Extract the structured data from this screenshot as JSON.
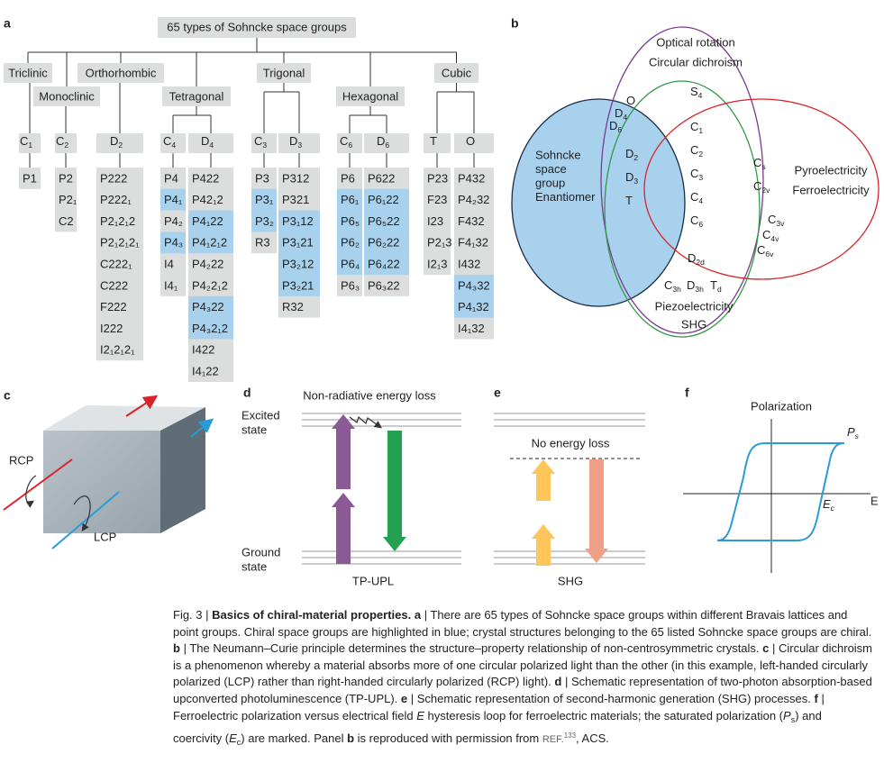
{
  "panel_a": {
    "letter": "a",
    "root": "65 types of Sohncke space groups",
    "systems": [
      {
        "name": "Triclinic",
        "point_groups": [
          {
            "symbol": {
              "base": "C",
              "sub": "1"
            },
            "space_groups": [
              "P1"
            ]
          }
        ]
      },
      {
        "name": "Monoclinic",
        "point_groups": [
          {
            "symbol": {
              "base": "C",
              "sub": "2"
            },
            "space_groups": [
              "P2",
              "P2₁",
              "C2"
            ]
          }
        ]
      },
      {
        "name": "Orthorhombic",
        "point_groups": [
          {
            "symbol": {
              "base": "D",
              "sub": "2"
            },
            "space_groups": [
              "P222",
              "P222₁",
              "P2₁2₁2",
              "P2₁2₁2₁",
              "C222₁",
              "C222",
              "F222",
              "I222",
              "I2₁2₁2₁"
            ]
          }
        ]
      },
      {
        "name": "Tetragonal",
        "point_groups": [
          {
            "symbol": {
              "base": "C",
              "sub": "4"
            },
            "space_groups": [
              "P4",
              "P4₁",
              "P4₂",
              "P4₃",
              "I4",
              "I4₁"
            ],
            "chiral": [
              1,
              3
            ]
          },
          {
            "symbol": {
              "base": "D",
              "sub": "4"
            },
            "space_groups": [
              "P422",
              "P42₁2",
              "P4₁22",
              "P4₁2₁2",
              "P4₂22",
              "P4₂2₁2",
              "P4₃22",
              "P4₃2₁2",
              "I422",
              "I4₁22"
            ],
            "chiral": [
              2,
              3,
              6,
              7
            ]
          }
        ]
      },
      {
        "name": "Trigonal",
        "point_groups": [
          {
            "symbol": {
              "base": "C",
              "sub": "3"
            },
            "space_groups": [
              "P3",
              "P3₁",
              "P3₂",
              "R3"
            ],
            "chiral": [
              1,
              2
            ]
          },
          {
            "symbol": {
              "base": "D",
              "sub": "3"
            },
            "space_groups": [
              "P312",
              "P321",
              "P3₁12",
              "P3₁21",
              "P3₂12",
              "P3₂21",
              "R32"
            ],
            "chiral": [
              2,
              3,
              4,
              5
            ]
          }
        ]
      },
      {
        "name": "Hexagonal",
        "point_groups": [
          {
            "symbol": {
              "base": "C",
              "sub": "6"
            },
            "space_groups": [
              "P6",
              "P6₁",
              "P6₅",
              "P6₂",
              "P6₄",
              "P6₃"
            ],
            "chiral": [
              1,
              2,
              3,
              4
            ]
          },
          {
            "symbol": {
              "base": "D",
              "sub": "6"
            },
            "space_groups": [
              "P622",
              "P6₁22",
              "P6₅22",
              "P6₂22",
              "P6₄22",
              "P6₃22"
            ],
            "chiral": [
              1,
              2,
              3,
              4
            ]
          }
        ]
      },
      {
        "name": "Cubic",
        "point_groups": [
          {
            "symbol": {
              "base": "T"
            },
            "space_groups": [
              "P23",
              "F23",
              "I23",
              "P2₁3",
              "I2₁3"
            ]
          },
          {
            "symbol": {
              "base": "O"
            },
            "space_groups": [
              "P432",
              "P4₂32",
              "F432",
              "F4₁32",
              "I432",
              "P4₃32",
              "P4₁32",
              "I4₁32"
            ],
            "chiral": [
              5,
              6
            ]
          }
        ]
      }
    ]
  },
  "panel_b": {
    "letter": "b",
    "optical": [
      "Optical rotation",
      "Circular dichroism"
    ],
    "pyro": [
      "Pyroelectricity",
      "Ferroelectricity"
    ],
    "piezo": [
      "Piezoelectricity",
      "SHG"
    ],
    "sohncke": [
      "Sohncke",
      "space",
      "group",
      "Enantiomer"
    ],
    "groups": [
      {
        "base": "S",
        "sub": "4"
      },
      {
        "base": "O"
      },
      {
        "base": "D",
        "sub": "4"
      },
      {
        "base": "D",
        "sub": "6"
      },
      {
        "base": "C",
        "sub": "1"
      },
      {
        "base": "C",
        "sub": "2"
      },
      {
        "base": "C",
        "sub": "3"
      },
      {
        "base": "C",
        "sub": "4"
      },
      {
        "base": "C",
        "sub": "6"
      },
      {
        "base": "D",
        "sub": "2"
      },
      {
        "base": "D",
        "sub": "3"
      },
      {
        "base": "T"
      },
      {
        "base": "C",
        "sub": "s"
      },
      {
        "base": "C",
        "sub": "2v"
      },
      {
        "base": "C",
        "sub": "3v"
      },
      {
        "base": "C",
        "sub": "4v"
      },
      {
        "base": "C",
        "sub": "6v"
      },
      {
        "base": "D",
        "sub": "2d"
      },
      {
        "base": "C",
        "sub": "3h"
      },
      {
        "base": "D",
        "sub": "3h"
      },
      {
        "base": "T",
        "sub": "d"
      }
    ]
  },
  "panel_c": {
    "letter": "c",
    "rcp": "RCP",
    "lcp": "LCP"
  },
  "panel_d": {
    "letter": "d",
    "note": "Non-radiative energy loss",
    "excited": [
      "Excited",
      "state"
    ],
    "ground": [
      "Ground",
      "state"
    ],
    "label": "TP-UPL"
  },
  "panel_e": {
    "letter": "e",
    "note": "No energy loss",
    "label": "SHG"
  },
  "panel_f": {
    "letter": "f",
    "y_label": "Polarization",
    "x_label": "E",
    "ps": {
      "base": "P",
      "sub": "s"
    },
    "ec": {
      "base": "E",
      "sub": "c"
    }
  },
  "caption": [
    {
      "text": "Fig. 3 | "
    },
    {
      "text": "Basics of chiral-material properties.",
      "style": "b"
    },
    {
      "text": " "
    },
    {
      "text": "a",
      "style": "b"
    },
    {
      "text": " | There are 65 types of Sohncke space groups within different Bravais lattices and point groups. Chiral space groups are highlighted in blue; crystal structures belonging to the 65 listed Sohncke space groups are chiral. "
    },
    {
      "text": "b",
      "style": "b"
    },
    {
      "text": " | The Neumann–Curie principle determines the structure–property relationship of non-centrosymmetric crystals. "
    },
    {
      "text": "c",
      "style": "b"
    },
    {
      "text": " | Circular dichroism is a phenomenon whereby a material absorbs more of one circular polarized light than the other (in this example, left-handed circularly polarized (LCP) rather than right-handed circularly polarized (RCP) light). "
    },
    {
      "text": "d",
      "style": "b"
    },
    {
      "text": " | Schematic representation of two-photon absorption-based upconverted photoluminescence (TP-UPL). "
    },
    {
      "text": "e",
      "style": "b"
    },
    {
      "text": " | Schematic representation of second-harmonic generation (SHG) processes. "
    },
    {
      "text": "f",
      "style": "b"
    },
    {
      "text": " | Ferroelectric polarization versus electrical field "
    },
    {
      "text": "E",
      "style": "i"
    },
    {
      "text": " hysteresis loop for ferroelectric materials; the saturated polarization ("
    },
    {
      "text": "P",
      "style": "i"
    },
    {
      "text": "s",
      "style": "sub"
    },
    {
      "text": ") and coercivity ("
    },
    {
      "text": "E",
      "style": "i"
    },
    {
      "text": "c",
      "style": "sub"
    },
    {
      "text": ") are marked. Panel "
    },
    {
      "text": "b",
      "style": "b"
    },
    {
      "text": " is reproduced with permission from "
    },
    {
      "text": "REF.",
      "style": "ref"
    },
    {
      "text": "133",
      "style": "sup"
    },
    {
      "text": ", ACS."
    }
  ]
}
